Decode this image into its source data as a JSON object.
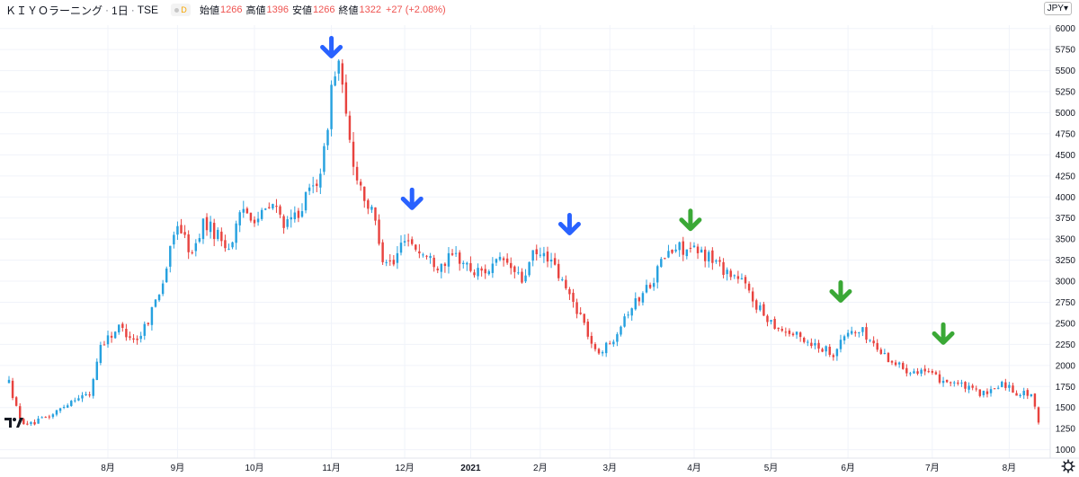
{
  "header": {
    "symbol": "ＫＩＹＯラーニング",
    "interval": "1日",
    "exchange": "TSE",
    "badge": "D",
    "open_label": "始値",
    "open": "1266",
    "high_label": "高値",
    "high": "1396",
    "low_label": "安値",
    "low": "1266",
    "close_label": "終値",
    "close": "1322",
    "change": "+27 (+2.08%)"
  },
  "currency": "JPY",
  "colors": {
    "up": "#26a1df",
    "down": "#e8433f",
    "blue_arrow": "#2962ff",
    "green_arrow": "#3aa836",
    "grid": "#f0f3fa"
  },
  "icons": {
    "logo": "tradingview-logo-icon",
    "settings": "gear-icon"
  },
  "chart_data": {
    "type": "candlestick",
    "ylim": [
      900,
      6050
    ],
    "y_ticks": [
      1000,
      1250,
      1500,
      1750,
      2000,
      2250,
      2500,
      2750,
      3000,
      3250,
      3500,
      3750,
      4000,
      4250,
      4500,
      4750,
      5000,
      5250,
      5500,
      5750,
      6000
    ],
    "x_ticks": [
      {
        "label": "8月",
        "index": 27
      },
      {
        "label": "9月",
        "index": 46
      },
      {
        "label": "10月",
        "index": 67
      },
      {
        "label": "11月",
        "index": 88
      },
      {
        "label": "12月",
        "index": 108
      },
      {
        "label": "2021",
        "index": 126
      },
      {
        "label": "2月",
        "index": 145
      },
      {
        "label": "3月",
        "index": 164
      },
      {
        "label": "4月",
        "index": 187
      },
      {
        "label": "5月",
        "index": 208
      },
      {
        "label": "6月",
        "index": 229
      },
      {
        "label": "7月",
        "index": 252
      },
      {
        "label": "8月",
        "index": 273
      }
    ],
    "anchors": [
      [
        0,
        1800
      ],
      [
        3,
        1350
      ],
      [
        6,
        1300
      ],
      [
        12,
        1420
      ],
      [
        18,
        1620
      ],
      [
        22,
        1650
      ],
      [
        25,
        2250
      ],
      [
        30,
        2450
      ],
      [
        35,
        2300
      ],
      [
        38,
        2550
      ],
      [
        42,
        3000
      ],
      [
        46,
        3700
      ],
      [
        50,
        3300
      ],
      [
        53,
        3700
      ],
      [
        57,
        3550
      ],
      [
        60,
        3400
      ],
      [
        64,
        3850
      ],
      [
        68,
        3750
      ],
      [
        72,
        3900
      ],
      [
        76,
        3650
      ],
      [
        80,
        3900
      ],
      [
        84,
        4200
      ],
      [
        86,
        4500
      ],
      [
        88,
        5300
      ],
      [
        90,
        5600
      ],
      [
        92,
        4900
      ],
      [
        94,
        4400
      ],
      [
        97,
        4000
      ],
      [
        100,
        3700
      ],
      [
        102,
        3300
      ],
      [
        105,
        3200
      ],
      [
        108,
        3550
      ],
      [
        112,
        3350
      ],
      [
        117,
        3200
      ],
      [
        122,
        3300
      ],
      [
        127,
        3100
      ],
      [
        131,
        3150
      ],
      [
        135,
        3250
      ],
      [
        140,
        3000
      ],
      [
        143,
        3300
      ],
      [
        147,
        3300
      ],
      [
        152,
        2900
      ],
      [
        156,
        2600
      ],
      [
        160,
        2150
      ],
      [
        164,
        2250
      ],
      [
        168,
        2600
      ],
      [
        172,
        2800
      ],
      [
        176,
        3050
      ],
      [
        179,
        3300
      ],
      [
        183,
        3400
      ],
      [
        187,
        3350
      ],
      [
        191,
        3300
      ],
      [
        195,
        3150
      ],
      [
        200,
        3000
      ],
      [
        205,
        2650
      ],
      [
        210,
        2450
      ],
      [
        215,
        2350
      ],
      [
        220,
        2250
      ],
      [
        225,
        2150
      ],
      [
        229,
        2400
      ],
      [
        233,
        2400
      ],
      [
        237,
        2200
      ],
      [
        241,
        2050
      ],
      [
        245,
        1950
      ],
      [
        249,
        1950
      ],
      [
        253,
        1850
      ],
      [
        258,
        1800
      ],
      [
        263,
        1700
      ],
      [
        267,
        1650
      ],
      [
        271,
        1800
      ],
      [
        275,
        1680
      ],
      [
        279,
        1660
      ],
      [
        281,
        1310
      ]
    ],
    "arrows": [
      {
        "color": "blue",
        "index": 88,
        "price": 5650
      },
      {
        "color": "blue",
        "index": 110,
        "price": 3850
      },
      {
        "color": "blue",
        "index": 153,
        "price": 3550
      },
      {
        "color": "green",
        "index": 186,
        "price": 3600
      },
      {
        "color": "green",
        "index": 227,
        "price": 2750
      },
      {
        "color": "green",
        "index": 255,
        "price": 2250
      }
    ]
  }
}
